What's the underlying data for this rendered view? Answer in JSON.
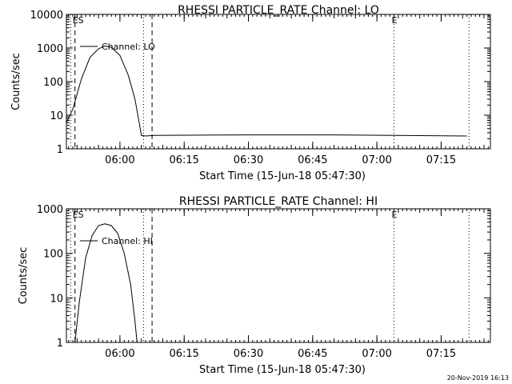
{
  "footer_timestamp": "20-Nov-2019 16:13",
  "chart_data": [
    {
      "type": "line",
      "title": "RHESSI PARTICLE_RATE Channel: LO",
      "xlabel": "Start Time (15-Jun-18 05:47:30)",
      "ylabel": "Counts/sec",
      "y_scale": "log",
      "ylim": [
        1,
        10000
      ],
      "y_ticks": [
        {
          "value": 1,
          "label": "1"
        },
        {
          "value": 10,
          "label": "10"
        },
        {
          "value": 100,
          "label": "100"
        },
        {
          "value": 1000,
          "label": "1000"
        },
        {
          "value": 10000,
          "label": "10000"
        }
      ],
      "x_ticks": [
        "06:00",
        "06:15",
        "06:30",
        "06:45",
        "07:00",
        "07:15"
      ],
      "xlim": [
        "05:47:30",
        "07:26:30"
      ],
      "legend": {
        "label": "Channel: LO",
        "placement": "top-left"
      },
      "markers": [
        {
          "time": "05:48:30",
          "style": "dotted",
          "label": ""
        },
        {
          "time": "05:49:30",
          "style": "dashed",
          "label": "ES"
        },
        {
          "time": "06:05:30",
          "style": "dotted",
          "label": ""
        },
        {
          "time": "06:07:30",
          "style": "dashed",
          "label": ""
        },
        {
          "time": "07:04:00",
          "style": "dotted",
          "label": "E"
        },
        {
          "time": "07:21:30",
          "style": "dotted",
          "label": ""
        }
      ],
      "series": [
        {
          "points": [
            [
              "05:47:30",
              6
            ],
            [
              "05:49:00",
              15
            ],
            [
              "05:51:00",
              120
            ],
            [
              "05:53:00",
              520
            ],
            [
              "05:55:00",
              950
            ],
            [
              "05:56:30",
              1150
            ],
            [
              "05:58:00",
              1050
            ],
            [
              "06:00:00",
              600
            ],
            [
              "06:02:00",
              150
            ],
            [
              "06:03:30",
              30
            ],
            [
              "06:04:30",
              6
            ],
            [
              "06:05:00",
              2.5
            ],
            [
              "06:06:00",
              2.4
            ],
            [
              "06:08:00",
              2.5
            ],
            [
              "06:30:00",
              2.6
            ],
            [
              "06:50:00",
              2.6
            ],
            [
              "07:04:00",
              2.5
            ],
            [
              "07:21:00",
              2.4
            ]
          ]
        }
      ]
    },
    {
      "type": "line",
      "title": "RHESSI PARTICLE_RATE Channel: HI",
      "xlabel": "Start Time (15-Jun-18 05:47:30)",
      "ylabel": "Counts/sec",
      "y_scale": "log",
      "ylim": [
        1,
        1000
      ],
      "y_ticks": [
        {
          "value": 1,
          "label": "1"
        },
        {
          "value": 10,
          "label": "10"
        },
        {
          "value": 100,
          "label": "100"
        },
        {
          "value": 1000,
          "label": "1000"
        }
      ],
      "x_ticks": [
        "06:00",
        "06:15",
        "06:30",
        "06:45",
        "07:00",
        "07:15"
      ],
      "xlim": [
        "05:47:30",
        "07:26:30"
      ],
      "legend": {
        "label": "Channel: HI",
        "placement": "top-left"
      },
      "markers": [
        {
          "time": "05:48:30",
          "style": "dotted",
          "label": ""
        },
        {
          "time": "05:49:30",
          "style": "dashed",
          "label": "ES"
        },
        {
          "time": "06:05:30",
          "style": "dotted",
          "label": ""
        },
        {
          "time": "06:07:30",
          "style": "dashed",
          "label": ""
        },
        {
          "time": "07:04:00",
          "style": "dotted",
          "label": "E"
        },
        {
          "time": "07:21:30",
          "style": "dotted",
          "label": ""
        }
      ],
      "series": [
        {
          "points": [
            [
              "05:49:30",
              1
            ],
            [
              "05:50:30",
              8
            ],
            [
              "05:52:00",
              80
            ],
            [
              "05:53:30",
              250
            ],
            [
              "05:55:00",
              420
            ],
            [
              "05:56:30",
              460
            ],
            [
              "05:58:00",
              420
            ],
            [
              "05:59:30",
              280
            ],
            [
              "06:01:00",
              100
            ],
            [
              "06:02:30",
              20
            ],
            [
              "06:03:30",
              3
            ],
            [
              "06:04:00",
              1
            ]
          ]
        }
      ]
    }
  ]
}
